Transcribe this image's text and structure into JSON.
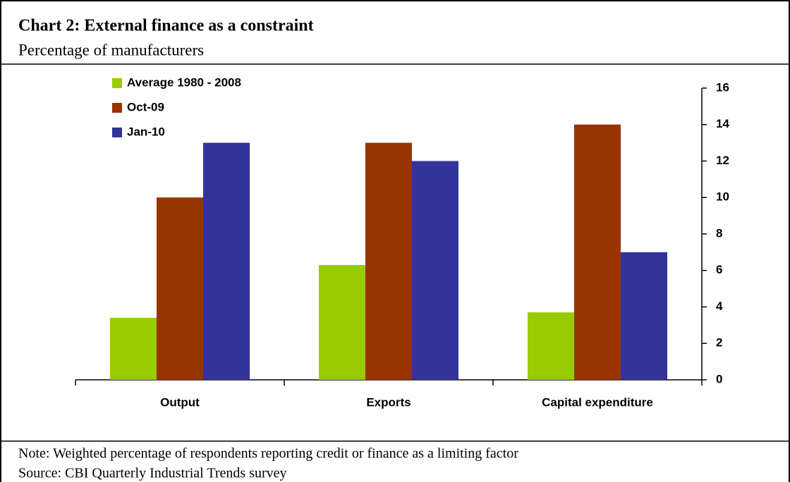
{
  "chart_data": {
    "type": "bar",
    "title": "Chart 2: External finance as a constraint",
    "subtitle": "Percentage of manufacturers",
    "note": "Note: Weighted percentage of respondents reporting credit or finance as a limiting factor",
    "source": "Source: CBI Quarterly Industrial Trends survey",
    "categories": [
      "Output",
      "Exports",
      "Capital expenditure"
    ],
    "series": [
      {
        "name": "Average 1980 - 2008",
        "color": "#99cc00",
        "values": [
          3.4,
          6.3,
          3.7
        ]
      },
      {
        "name": "Oct-09",
        "color": "#993300",
        "values": [
          10,
          13,
          14
        ]
      },
      {
        "name": "Jan-10",
        "color": "#333399",
        "values": [
          13,
          12,
          7
        ]
      }
    ],
    "ylim": [
      0,
      16
    ],
    "yticks": [
      0,
      2,
      4,
      6,
      8,
      10,
      12,
      14,
      16
    ],
    "y_axis_side": "right",
    "legend": "top-left",
    "grid": false
  }
}
